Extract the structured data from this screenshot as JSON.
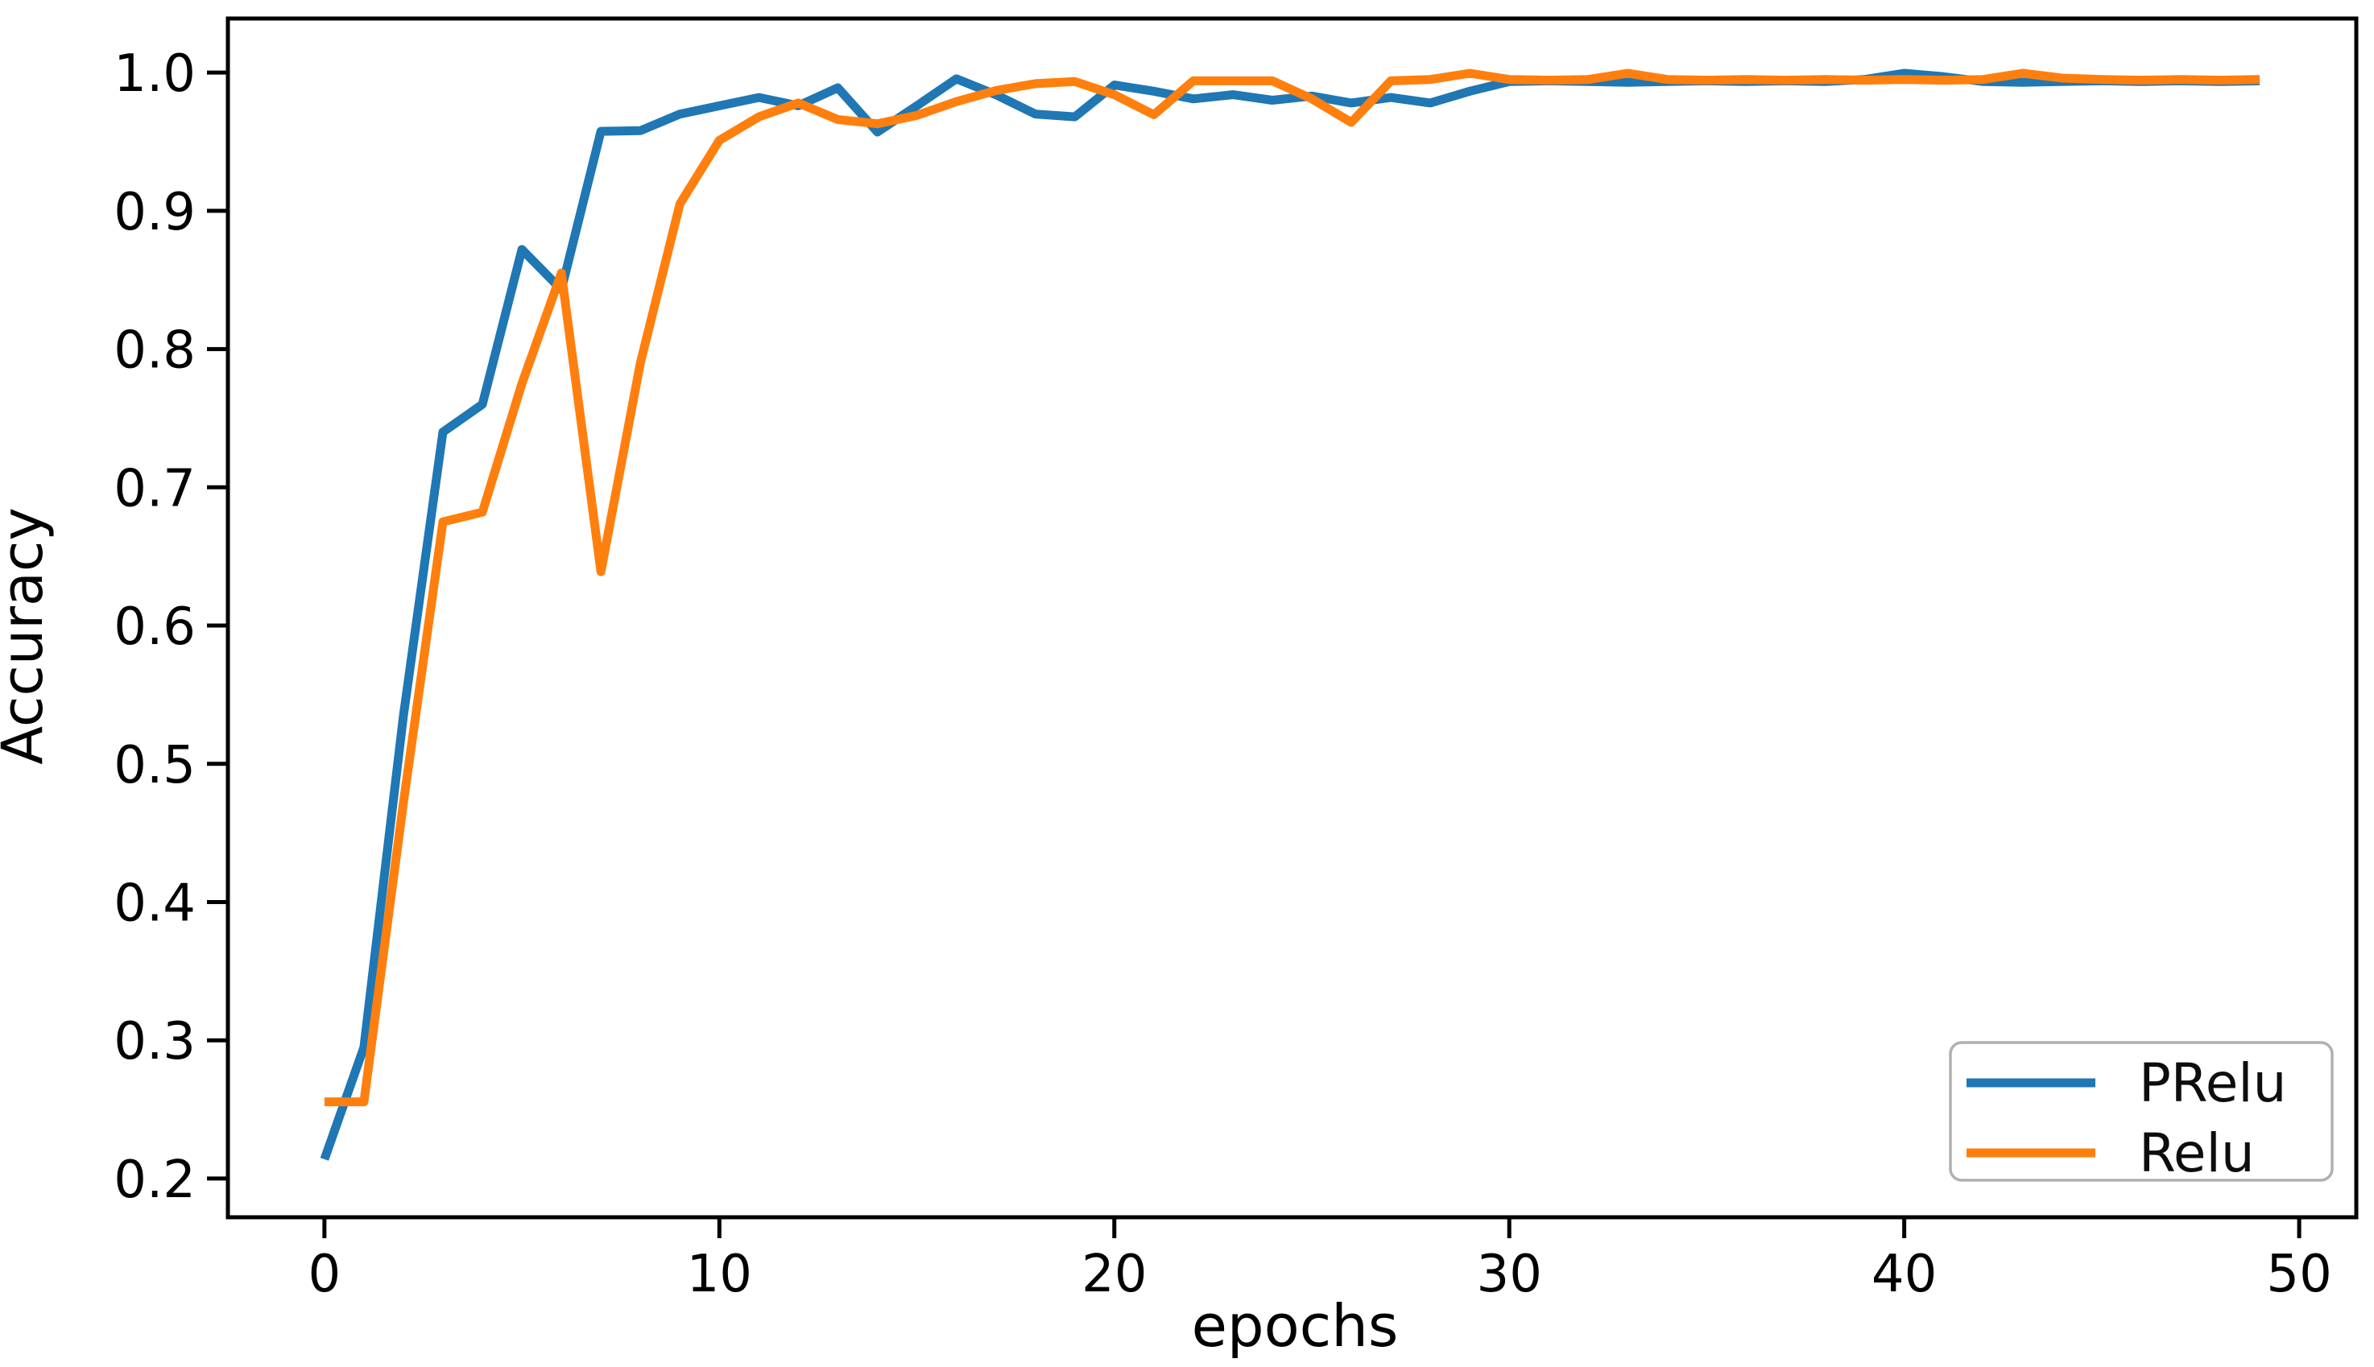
{
  "page": {
    "background": "#ffffff"
  },
  "chart_data": {
    "type": "line",
    "title": "",
    "xlabel": "epochs",
    "ylabel": "Accuracy",
    "grid": false,
    "axis_color": "#000000",
    "text_color": "#000000",
    "xlim": [
      -2.444,
      51.446
    ],
    "ylim": [
      0.172,
      1.0391
    ],
    "x_ticks": [
      0,
      10,
      20,
      30,
      40,
      50
    ],
    "y_ticks": [
      1.0,
      0.9,
      0.8,
      0.7,
      0.6,
      0.5,
      0.4,
      0.3,
      0.2
    ],
    "x": [
      0,
      1,
      2,
      3,
      4,
      5,
      6,
      7,
      8,
      9,
      10,
      11,
      12,
      13,
      14,
      15,
      16,
      17,
      18,
      19,
      20,
      21,
      22,
      23,
      24,
      25,
      26,
      27,
      28,
      29,
      30,
      31,
      32,
      33,
      34,
      35,
      36,
      37,
      38,
      39,
      40,
      41,
      42,
      43,
      44,
      45,
      46,
      47,
      48,
      49
    ],
    "series": [
      {
        "name": "PRelu",
        "color": "#1f77b4",
        "values": [
          0.214,
          0.295,
          0.535,
          0.74,
          0.76,
          0.872,
          0.843,
          0.9575,
          0.958,
          0.97,
          0.976,
          0.982,
          0.976,
          0.989,
          0.957,
          0.976,
          0.9955,
          0.984,
          0.97,
          0.968,
          0.991,
          0.9865,
          0.981,
          0.984,
          0.98,
          0.983,
          0.978,
          0.982,
          0.978,
          0.9865,
          0.9935,
          0.994,
          0.9935,
          0.993,
          0.9935,
          0.994,
          0.9935,
          0.994,
          0.9935,
          0.995,
          0.9995,
          0.997,
          0.9935,
          0.993,
          0.9935,
          0.994,
          0.9935,
          0.994,
          0.9935,
          0.994
        ]
      },
      {
        "name": "Relu",
        "color": "#ff7f0e",
        "values": [
          0.2555,
          0.2555,
          0.472,
          0.675,
          0.682,
          0.775,
          0.855,
          0.639,
          0.79,
          0.905,
          0.951,
          0.968,
          0.978,
          0.966,
          0.963,
          0.969,
          0.979,
          0.987,
          0.992,
          0.9935,
          0.984,
          0.9695,
          0.994,
          0.994,
          0.994,
          0.981,
          0.964,
          0.994,
          0.995,
          0.9995,
          0.995,
          0.9945,
          0.995,
          0.9995,
          0.995,
          0.9945,
          0.995,
          0.9945,
          0.995,
          0.9945,
          0.995,
          0.9945,
          0.995,
          0.9995,
          0.996,
          0.995,
          0.9945,
          0.995,
          0.9945,
          0.995
        ]
      }
    ],
    "legend": {
      "position": "lower-right",
      "entries": [
        {
          "label": "PRelu",
          "color": "#1f77b4"
        },
        {
          "label": "Relu",
          "color": "#ff7f0e"
        }
      ]
    }
  }
}
